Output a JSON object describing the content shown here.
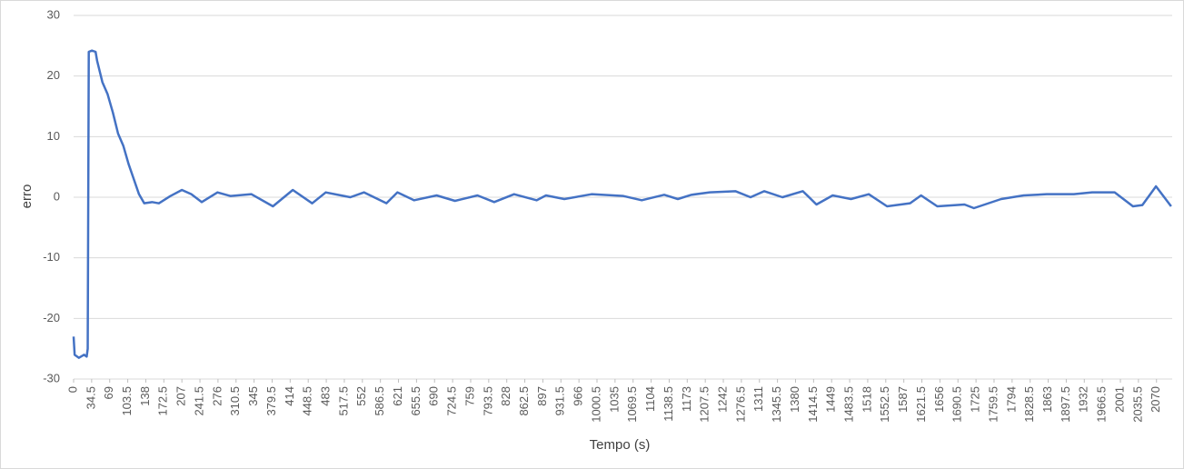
{
  "chart_data": {
    "type": "line",
    "x_label": "Tempo (s)",
    "y_label": "erro",
    "color": "#4472c4",
    "grid": true,
    "xlim": [
      0,
      2100
    ],
    "ylim": [
      -30,
      30
    ],
    "yticks": [
      -30,
      -20,
      -10,
      0,
      10,
      20,
      30
    ],
    "xticks": [
      0,
      34.5,
      69,
      103.5,
      138,
      172.5,
      207,
      241.5,
      276,
      310.5,
      345,
      379.5,
      414,
      448.5,
      483,
      517.5,
      552,
      586.5,
      621,
      655.5,
      690,
      724.5,
      759,
      793.5,
      828,
      862.5,
      897,
      931.5,
      966,
      1000.5,
      1035,
      1069.5,
      1104,
      1138.5,
      1173,
      1207.5,
      1242,
      1276.5,
      1311,
      1345.5,
      1380,
      1414.5,
      1449,
      1483.5,
      1518,
      1552.5,
      1587,
      1621.5,
      1656,
      1690.5,
      1725,
      1759.5,
      1794,
      1828.5,
      1863,
      1897.5,
      1932,
      1966.5,
      2001,
      2035.5,
      2070
    ],
    "x": [
      0,
      2,
      10,
      20,
      25,
      27,
      29,
      35,
      42,
      45,
      55,
      65,
      75,
      85,
      95,
      105,
      115,
      125,
      135,
      150,
      163,
      185,
      207,
      225,
      245,
      275,
      300,
      340,
      381,
      419,
      456,
      482,
      529,
      555,
      598,
      619,
      651,
      694,
      729,
      772,
      804,
      842,
      885,
      903,
      938,
      990,
      1051,
      1086,
      1129,
      1155,
      1181,
      1216,
      1265,
      1294,
      1320,
      1355,
      1394,
      1420,
      1451,
      1486,
      1520,
      1555,
      1599,
      1620,
      1651,
      1703,
      1721,
      1773,
      1816,
      1860,
      1912,
      1947,
      1990,
      2025,
      2043,
      2069,
      2098
    ],
    "values": [
      -23,
      -26,
      -26.5,
      -26,
      -26.3,
      -25,
      24,
      24.2,
      24,
      22.5,
      19,
      17,
      14,
      10.5,
      8.5,
      5.5,
      3,
      0.5,
      -1,
      -0.8,
      -1,
      0.2,
      1.2,
      0.5,
      -0.8,
      0.8,
      0.2,
      0.5,
      -1.5,
      1.2,
      -1,
      0.8,
      0,
      0.8,
      -1,
      0.8,
      -0.5,
      0.3,
      -0.6,
      0.3,
      -0.8,
      0.5,
      -0.5,
      0.3,
      -0.3,
      0.5,
      0.2,
      -0.5,
      0.4,
      -0.3,
      0.4,
      0.8,
      1,
      0,
      1,
      0,
      1,
      -1.2,
      0.3,
      -0.3,
      0.5,
      -1.5,
      -1,
      0.3,
      -1.5,
      -1.2,
      -1.8,
      -0.3,
      0.3,
      0.5,
      0.5,
      0.8,
      0.8,
      -1.5,
      -1.3,
      1.8,
      -1.5
    ]
  }
}
